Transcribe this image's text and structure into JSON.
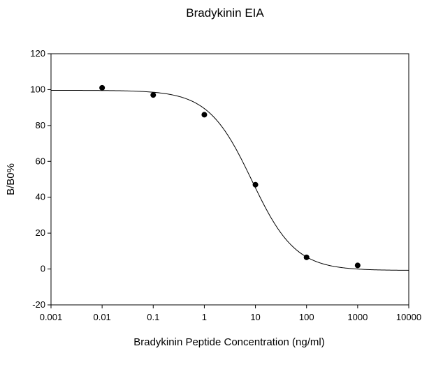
{
  "chart_data": {
    "type": "scatter",
    "title": "Bradykinin EIA",
    "xlabel": "Bradykinin Peptide Concentration (ng/ml)",
    "ylabel": "B/B0%",
    "xscale": "log",
    "xlim": [
      0.001,
      10000
    ],
    "ylim": [
      -20,
      120
    ],
    "grid": false,
    "legend": "none",
    "x_ticks": [
      "0.001",
      "0.01",
      "0.1",
      "1",
      "10",
      "100",
      "1000",
      "10000"
    ],
    "y_ticks": [
      "-20",
      "0",
      "20",
      "40",
      "60",
      "80",
      "100",
      "120"
    ],
    "series": [
      {
        "type": "scatter",
        "x": [
          0.01,
          0.1,
          1,
          10,
          100,
          1000
        ],
        "y": [
          101,
          97,
          86,
          47,
          6.5,
          2
        ],
        "marker_color": "#000000"
      },
      {
        "type": "line",
        "fit": "4PL",
        "top": 99.6,
        "bottom": -0.8,
        "ec50": 8.5,
        "hill": 1.02,
        "x_range": [
          0.001,
          10000
        ],
        "line_color": "#000000"
      }
    ]
  }
}
